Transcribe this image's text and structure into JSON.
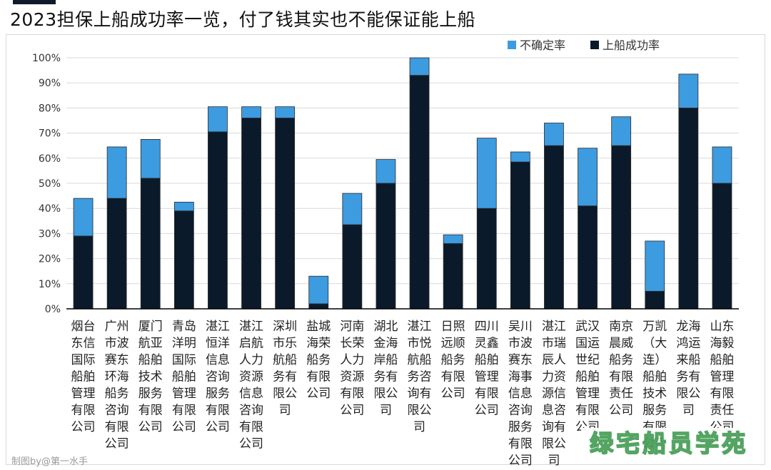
{
  "title": "2023担保上船成功率一览，付了钱其实也不能保证能上船",
  "credit": "制图by@第一水手",
  "watermark": "绿宅船员学苑",
  "colors": {
    "success": "#0b1a2a",
    "uncertain": "#3d9be0",
    "axis": "#000000",
    "grid": "#d9d9d9",
    "text": "#333333"
  },
  "chart_data": {
    "type": "bar",
    "stacked": true,
    "grid": true,
    "legend_position": "top-right",
    "ylim": [
      0,
      100
    ],
    "yticks": [
      "0%",
      "10%",
      "20%",
      "30%",
      "40%",
      "50%",
      "60%",
      "70%",
      "80%",
      "90%",
      "100%"
    ],
    "categories": [
      "烟台东信国际船舶管理有限公司",
      "广州市波赛东环海船务咨询有限公司",
      "厦门航亚船舶技术服务有限公司",
      "青岛洋明国际船舶管理有限公司",
      "湛江恒洋信息咨询服务有限公司",
      "湛江启航人力资源信息咨询有限公司",
      "深圳市乐航船务有限公司",
      "盐城海荣船务有限公司",
      "河南长荣人力资源有限公司",
      "湖北金海岸船务有限公司",
      "湛江市悦航船务咨询有限公司",
      "日照远顺船务有限公司",
      "四川灵鑫船舶管理有限公司",
      "吴川市波赛东海事信息咨询服务有限公司",
      "湛江市瑞辰人力资源信息咨询有限公司",
      "武汉国运世纪船舶管理有限公司",
      "南京晨威船务有限责任公司",
      "万凯（大连）船舶技术服务有限公司",
      "龙海鸿运来船务有限公司",
      "山东海毅船舶管理有限责任公司"
    ],
    "series": [
      {
        "name": "上船成功率",
        "color": "#0b1a2a",
        "values": [
          29,
          44,
          52,
          39,
          70.5,
          76,
          76,
          2,
          33.5,
          50,
          93,
          26,
          40,
          58.5,
          65,
          41,
          65,
          7,
          80,
          50
        ]
      },
      {
        "name": "不确定率",
        "color": "#3d9be0",
        "values": [
          15,
          20.5,
          15.5,
          3.5,
          10,
          4.5,
          4.5,
          11,
          12.5,
          9.5,
          7,
          3.5,
          28,
          4,
          9,
          23,
          11.5,
          20,
          13.5,
          14.5
        ]
      }
    ],
    "legend_order": [
      "不确定率",
      "上船成功率"
    ]
  }
}
